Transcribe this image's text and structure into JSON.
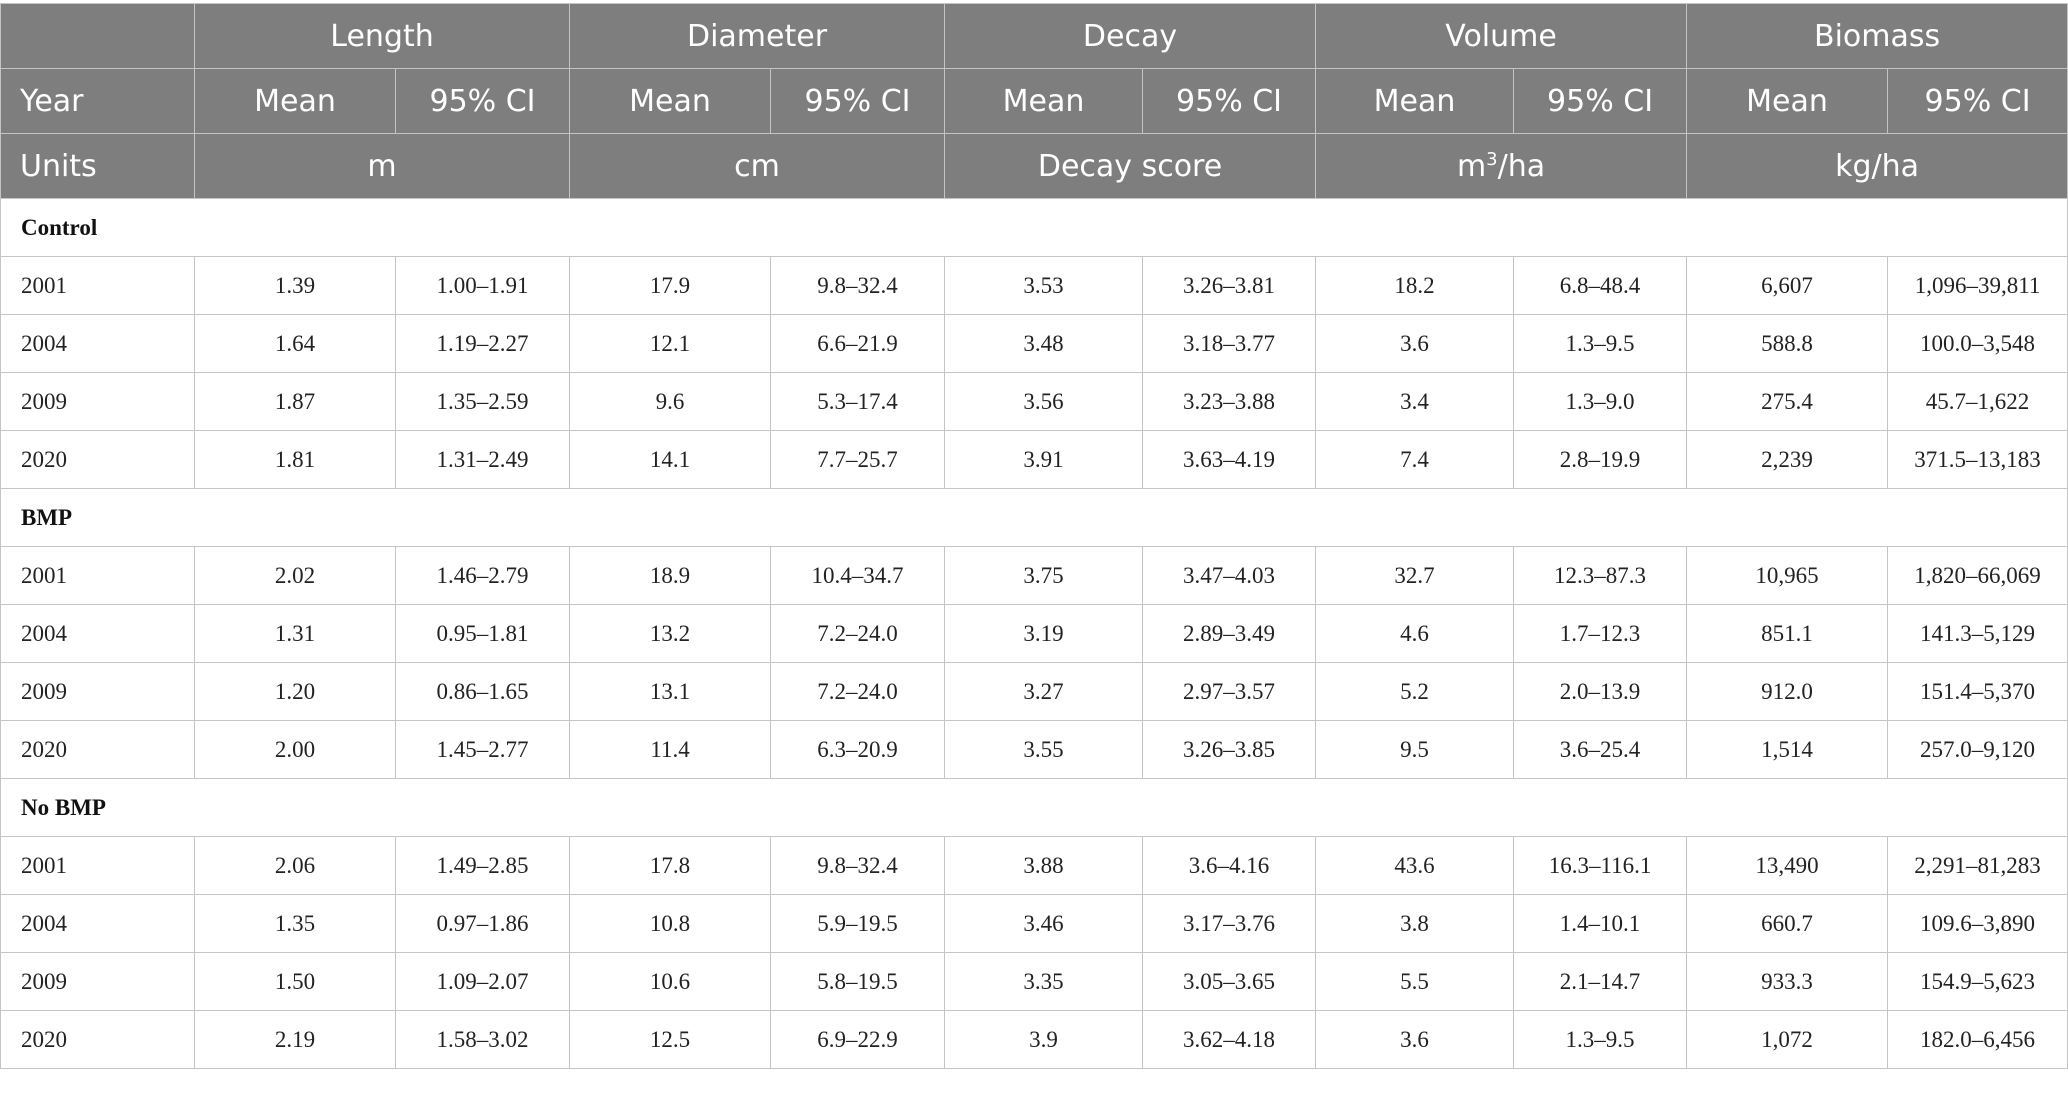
{
  "header": {
    "row1": [
      "",
      "Length",
      "Diameter",
      "Decay",
      "Volume",
      "Biomass"
    ],
    "row2_label": "Year",
    "mean_label": "Mean",
    "ci_label": "95% CI",
    "units_label": "Units",
    "units": {
      "length": "m",
      "diameter": "cm",
      "decay": "Decay score",
      "volume_base": "m",
      "volume_sup": "3",
      "volume_rest": "/ha",
      "biomass": "kg/ha"
    }
  },
  "groups": [
    {
      "name": "Control",
      "rows": [
        {
          "year": "2001",
          "values": [
            "1.39",
            "1.00–1.91",
            "17.9",
            "9.8–32.4",
            "3.53",
            "3.26–3.81",
            "18.2",
            "6.8–48.4",
            "6,607",
            "1,096–39,811"
          ]
        },
        {
          "year": "2004",
          "values": [
            "1.64",
            "1.19–2.27",
            "12.1",
            "6.6–21.9",
            "3.48",
            "3.18–3.77",
            "3.6",
            "1.3–9.5",
            "588.8",
            "100.0–3,548"
          ]
        },
        {
          "year": "2009",
          "values": [
            "1.87",
            "1.35–2.59",
            "9.6",
            "5.3–17.4",
            "3.56",
            "3.23–3.88",
            "3.4",
            "1.3–9.0",
            "275.4",
            "45.7–1,622"
          ]
        },
        {
          "year": "2020",
          "values": [
            "1.81",
            "1.31–2.49",
            "14.1",
            "7.7–25.7",
            "3.91",
            "3.63–4.19",
            "7.4",
            "2.8–19.9",
            "2,239",
            "371.5–13,183"
          ]
        }
      ]
    },
    {
      "name": "BMP",
      "rows": [
        {
          "year": "2001",
          "values": [
            "2.02",
            "1.46–2.79",
            "18.9",
            "10.4–34.7",
            "3.75",
            "3.47–4.03",
            "32.7",
            "12.3–87.3",
            "10,965",
            "1,820–66,069"
          ]
        },
        {
          "year": "2004",
          "values": [
            "1.31",
            "0.95–1.81",
            "13.2",
            "7.2–24.0",
            "3.19",
            "2.89–3.49",
            "4.6",
            "1.7–12.3",
            "851.1",
            "141.3–5,129"
          ]
        },
        {
          "year": "2009",
          "values": [
            "1.20",
            "0.86–1.65",
            "13.1",
            "7.2–24.0",
            "3.27",
            "2.97–3.57",
            "5.2",
            "2.0–13.9",
            "912.0",
            "151.4–5,370"
          ]
        },
        {
          "year": "2020",
          "values": [
            "2.00",
            "1.45–2.77",
            "11.4",
            "6.3–20.9",
            "3.55",
            "3.26–3.85",
            "9.5",
            "3.6–25.4",
            "1,514",
            "257.0–9,120"
          ]
        }
      ]
    },
    {
      "name": "No BMP",
      "rows": [
        {
          "year": "2001",
          "values": [
            "2.06",
            "1.49–2.85",
            "17.8",
            "9.8–32.4",
            "3.88",
            "3.6–4.16",
            "43.6",
            "16.3–116.1",
            "13,490",
            "2,291–81,283"
          ]
        },
        {
          "year": "2004",
          "values": [
            "1.35",
            "0.97–1.86",
            "10.8",
            "5.9–19.5",
            "3.46",
            "3.17–3.76",
            "3.8",
            "1.4–10.1",
            "660.7",
            "109.6–3,890"
          ]
        },
        {
          "year": "2009",
          "values": [
            "1.50",
            "1.09–2.07",
            "10.6",
            "5.8–19.5",
            "3.35",
            "3.05–3.65",
            "5.5",
            "2.1–14.7",
            "933.3",
            "154.9–5,623"
          ]
        },
        {
          "year": "2020",
          "values": [
            "2.19",
            "1.58–3.02",
            "12.5",
            "6.9–22.9",
            "3.9",
            "3.62–4.18",
            "3.6",
            "1.3–9.5",
            "1,072",
            "182.0–6,456"
          ]
        }
      ]
    }
  ]
}
